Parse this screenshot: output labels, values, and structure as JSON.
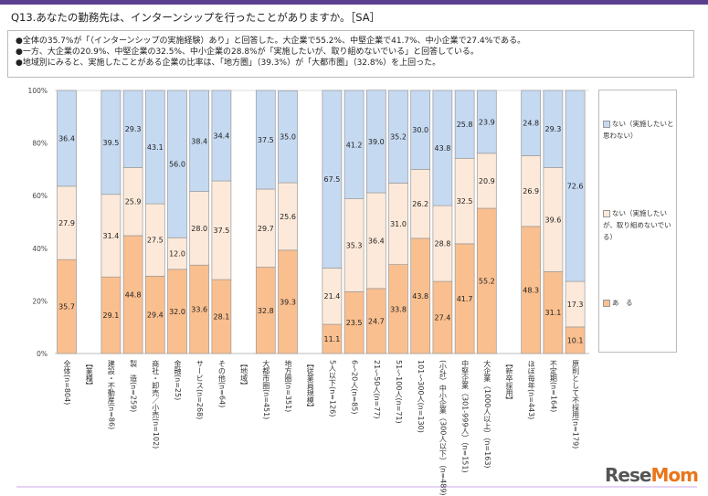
{
  "title": "Q13.あなたの勤務先は、インターンシップを行ったことがありますか。［SA］",
  "notes": [
    "●全体の35.7%が「（インターンシップの実施経験）あり」と回答した。大企業で55.2%、中堅企業で41.7%、中小企業で27.4%である。",
    "●一方、大企業の20.9%、中堅企業の32.5%、中小企業の28.8%が「実施したいが、取り組めないでいる」と回答している。",
    "●地域別にみると、実施したことがある企業の比率は、「地方圏」（39.3%）が「大都市圏」（32.8%）を上回った。"
  ],
  "logo": "ReseMom",
  "chart_data": {
    "type": "bar",
    "stacked": true,
    "ylim": [
      0,
      100
    ],
    "yticks": [
      "0%",
      "20%",
      "40%",
      "60%",
      "80%",
      "100%"
    ],
    "categories": [
      "全体(n=804)",
      "【業種】",
      "建設・不動産(n=86)",
      "製　造(n=259)",
      "商社・卸売／小売(n=102)",
      "金融(n=25)",
      "サービス(n=268)",
      "その他(n=64)",
      "【地域】",
      "大都市圏(n=451)",
      "地方圏(n=351)",
      "【従業員規模】",
      "5人以下(n=126)",
      "6～20人(n=85)",
      "21～50人(n=77)",
      "51～100人(n=71)",
      "101～300人(n=130)",
      "(小計）中小企業（300人以下）（n=489)",
      "中堅企業（301-999人）（n=151)",
      "大企業（1000人以上）（n=163)",
      "【新卒採用】",
      "ほぼ毎年(n=443)",
      "不定期(n=164)",
      "原則として不採用(n=179)"
    ],
    "series": [
      {
        "name": "あ　る",
        "color": "#fabf8f",
        "values": [
          35.7,
          null,
          29.1,
          44.8,
          29.4,
          32.0,
          33.6,
          28.1,
          null,
          32.8,
          39.3,
          null,
          11.1,
          23.5,
          24.7,
          33.8,
          43.8,
          27.4,
          41.7,
          55.2,
          null,
          48.3,
          31.1,
          10.1
        ]
      },
      {
        "name": "ない（実施したいが、取り組めないでいる）",
        "color": "#fde9d9",
        "values": [
          27.9,
          null,
          31.4,
          25.9,
          27.5,
          12.0,
          28.0,
          37.5,
          null,
          29.7,
          25.6,
          null,
          21.4,
          35.3,
          36.4,
          31.0,
          26.2,
          28.8,
          32.5,
          20.9,
          null,
          26.9,
          39.6,
          17.3
        ]
      },
      {
        "name": "ない（実施したいと思わない）",
        "color": "#c5d9f1",
        "values": [
          36.4,
          null,
          39.5,
          29.3,
          43.1,
          56.0,
          38.4,
          34.4,
          null,
          37.5,
          35.0,
          null,
          67.5,
          41.2,
          39.0,
          35.2,
          30.0,
          43.8,
          25.8,
          23.9,
          null,
          24.8,
          29.3,
          72.6
        ]
      }
    ],
    "legend_position": "right",
    "grid": false
  }
}
